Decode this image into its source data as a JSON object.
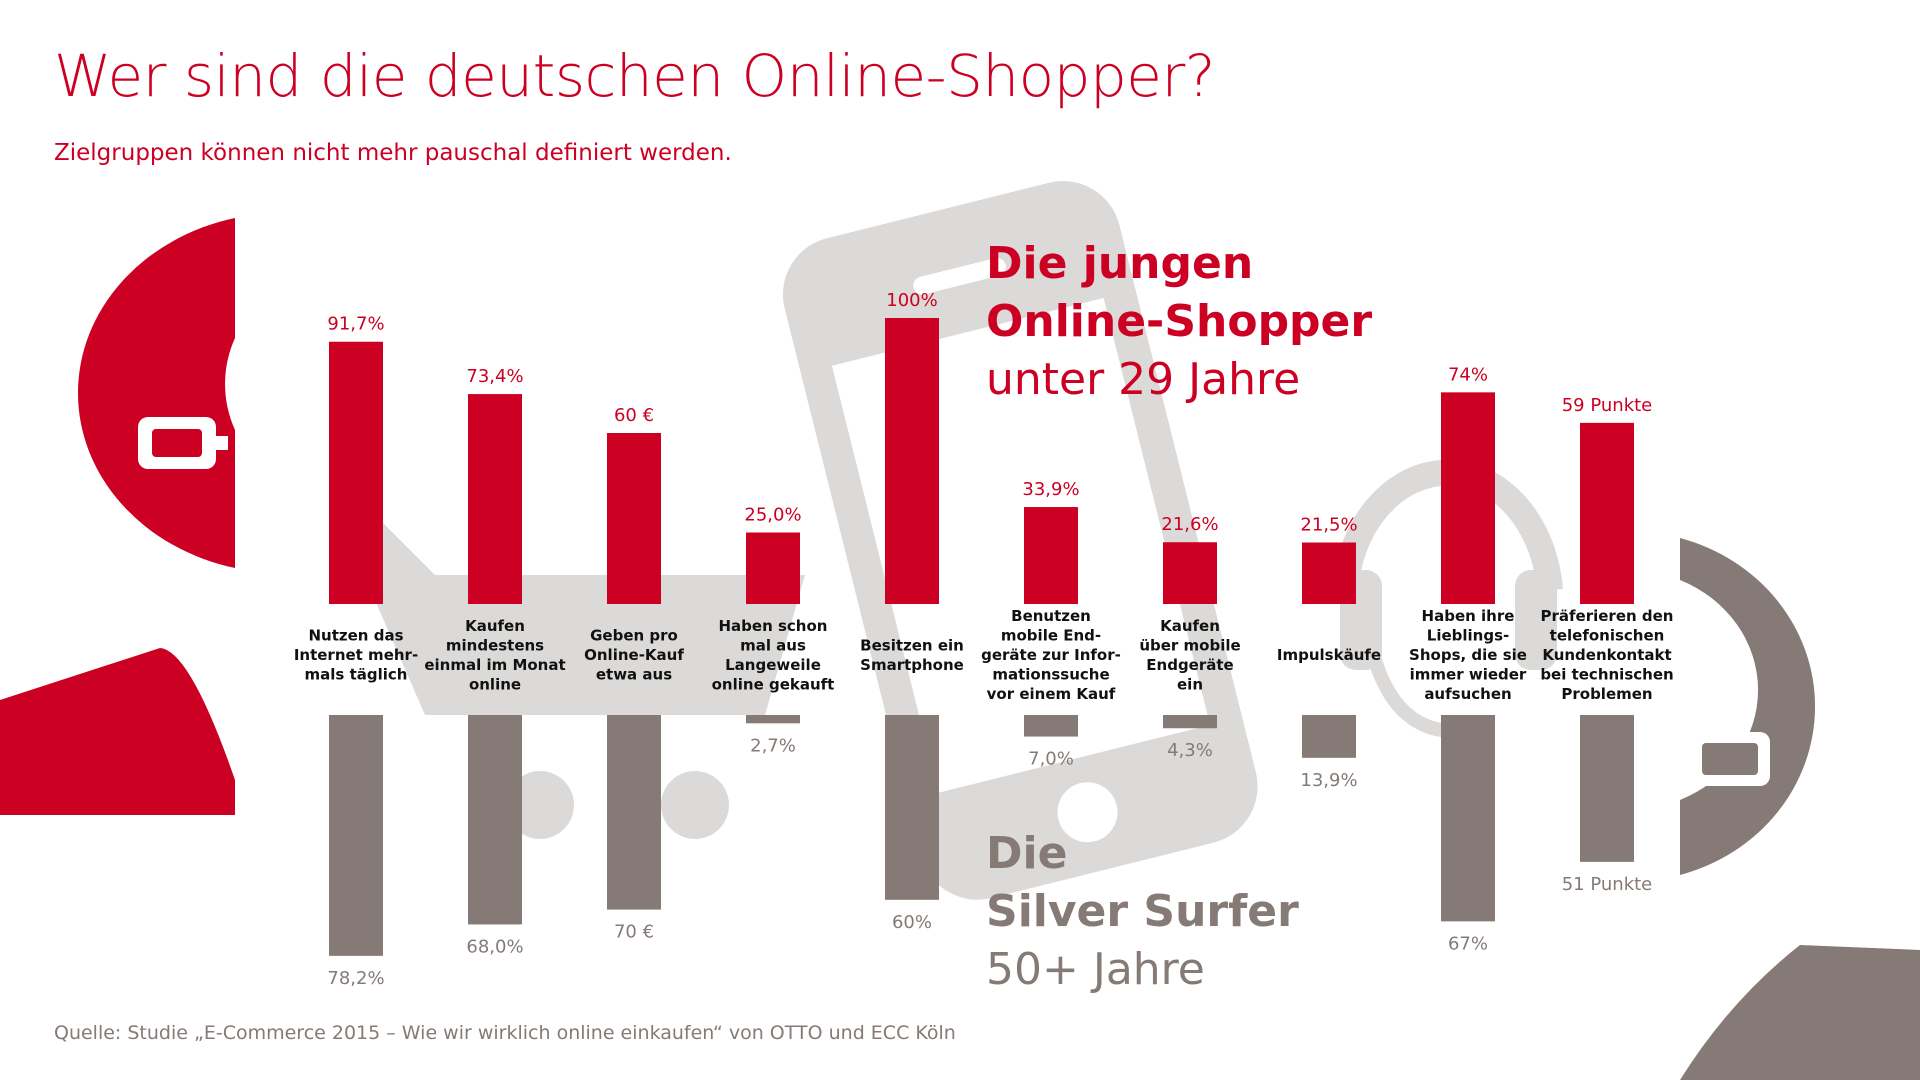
{
  "title": "Wer sind die deutschen Online-Shopper?",
  "subtitle": "Zielgruppen können nicht mehr pauschal definiert werden.",
  "groups": {
    "young": {
      "line1": "Die jungen",
      "line2": "Online-Shopper",
      "line3": "unter 29 Jahre"
    },
    "silver": {
      "line1": "Die",
      "line2": "Silver Surfer",
      "line3": "50+ Jahre"
    }
  },
  "source": "Quelle: Studie „E-Commerce 2015 – Wie wir wirklich online einkaufen“ von OTTO und ECC Köln",
  "colors": {
    "young": "#cc0022",
    "silver": "#857a75",
    "background_icons": "#dcdad8"
  },
  "background_icons": [
    "person-icon",
    "shopping-cart-icon",
    "smartphone-icon",
    "headset-icon",
    "person-icon"
  ],
  "chart_data": {
    "type": "bar",
    "layout": "mirrored",
    "series": [
      {
        "name": "Die jungen Online-Shopper unter 29 Jahre",
        "color": "#cc0022"
      },
      {
        "name": "Die Silver Surfer 50+ Jahre",
        "color": "#857a75"
      }
    ],
    "categories": [
      {
        "label": [
          "Nutzen das",
          "Internet mehr-",
          "mals täglich"
        ],
        "young": 91.7,
        "young_label": "91,7%",
        "silver": 78.2,
        "silver_label": "78,2%"
      },
      {
        "label": [
          "Kaufen",
          "mindestens",
          "einmal im Monat",
          "online"
        ],
        "young": 73.4,
        "young_label": "73,4%",
        "silver": 68.0,
        "silver_label": "68,0%"
      },
      {
        "label": [
          "Geben pro",
          "Online-Kauf",
          "etwa aus"
        ],
        "young": 60,
        "young_label": "60 €",
        "silver": 70,
        "silver_label": "70 €"
      },
      {
        "label": [
          "Haben schon",
          "mal aus",
          "Langeweile",
          "online gekauft"
        ],
        "young": 25.0,
        "young_label": "25,0%",
        "silver": 2.7,
        "silver_label": "2,7%"
      },
      {
        "label": [
          "Besitzen ein",
          "Smartphone"
        ],
        "young": 100,
        "young_label": "100%",
        "silver": 60,
        "silver_label": "60%"
      },
      {
        "label": [
          "Benutzen",
          "mobile End-",
          "geräte zur Infor-",
          "mationssuche",
          "vor einem Kauf"
        ],
        "young": 33.9,
        "young_label": "33,9%",
        "silver": 7.0,
        "silver_label": "7,0%"
      },
      {
        "label": [
          "Kaufen",
          "über mobile",
          "Endgeräte",
          "ein"
        ],
        "young": 21.6,
        "young_label": "21,6%",
        "silver": 4.3,
        "silver_label": "4,3%"
      },
      {
        "label": [
          "Impulskäufe"
        ],
        "young": 21.5,
        "young_label": "21,5%",
        "silver": 13.9,
        "silver_label": "13,9%"
      },
      {
        "label": [
          "Haben ihre",
          "Lieblings-",
          "Shops, die sie",
          "immer wieder",
          "aufsuchen"
        ],
        "young": 74,
        "young_label": "74%",
        "silver": 67,
        "silver_label": "67%"
      },
      {
        "label": [
          "Präferieren den",
          "telefonischen",
          "Kundenkontakt",
          "bei technischen",
          "Problemen"
        ],
        "young": 59,
        "young_label": "59 Punkte",
        "silver": 51,
        "silver_label": "51 Punkte"
      }
    ]
  }
}
